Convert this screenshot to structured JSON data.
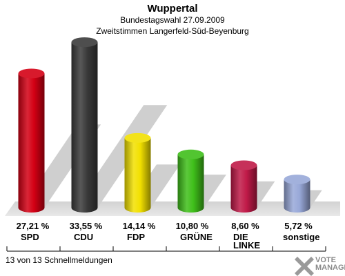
{
  "header": {
    "title": "Wuppertal",
    "subtitle1": "Bundestagswahl 27.09.2009",
    "subtitle2": "Zweitstimmen Langerfeld-Süd-Beyenburg"
  },
  "footer": {
    "text": "13 von 13 Schnellmeldungen",
    "brand_line1": "VOTE",
    "brand_line2": "MANAGER"
  },
  "chart_data": {
    "type": "bar",
    "categories": [
      "SPD",
      "CDU",
      "FDP",
      "GRÜNE",
      "DIE LINKE",
      "sonstige"
    ],
    "values": [
      27.21,
      33.55,
      14.14,
      10.8,
      8.6,
      5.72
    ],
    "value_labels": [
      "27,21 %",
      "33,55 %",
      "14,14 %",
      "10,80 %",
      "8,60 %",
      "5,72 %"
    ],
    "colors": [
      "#d40014",
      "#3a3a3a",
      "#f2e000",
      "#3fbf1a",
      "#c01a48",
      "#98a8d8"
    ],
    "unit": "%"
  }
}
